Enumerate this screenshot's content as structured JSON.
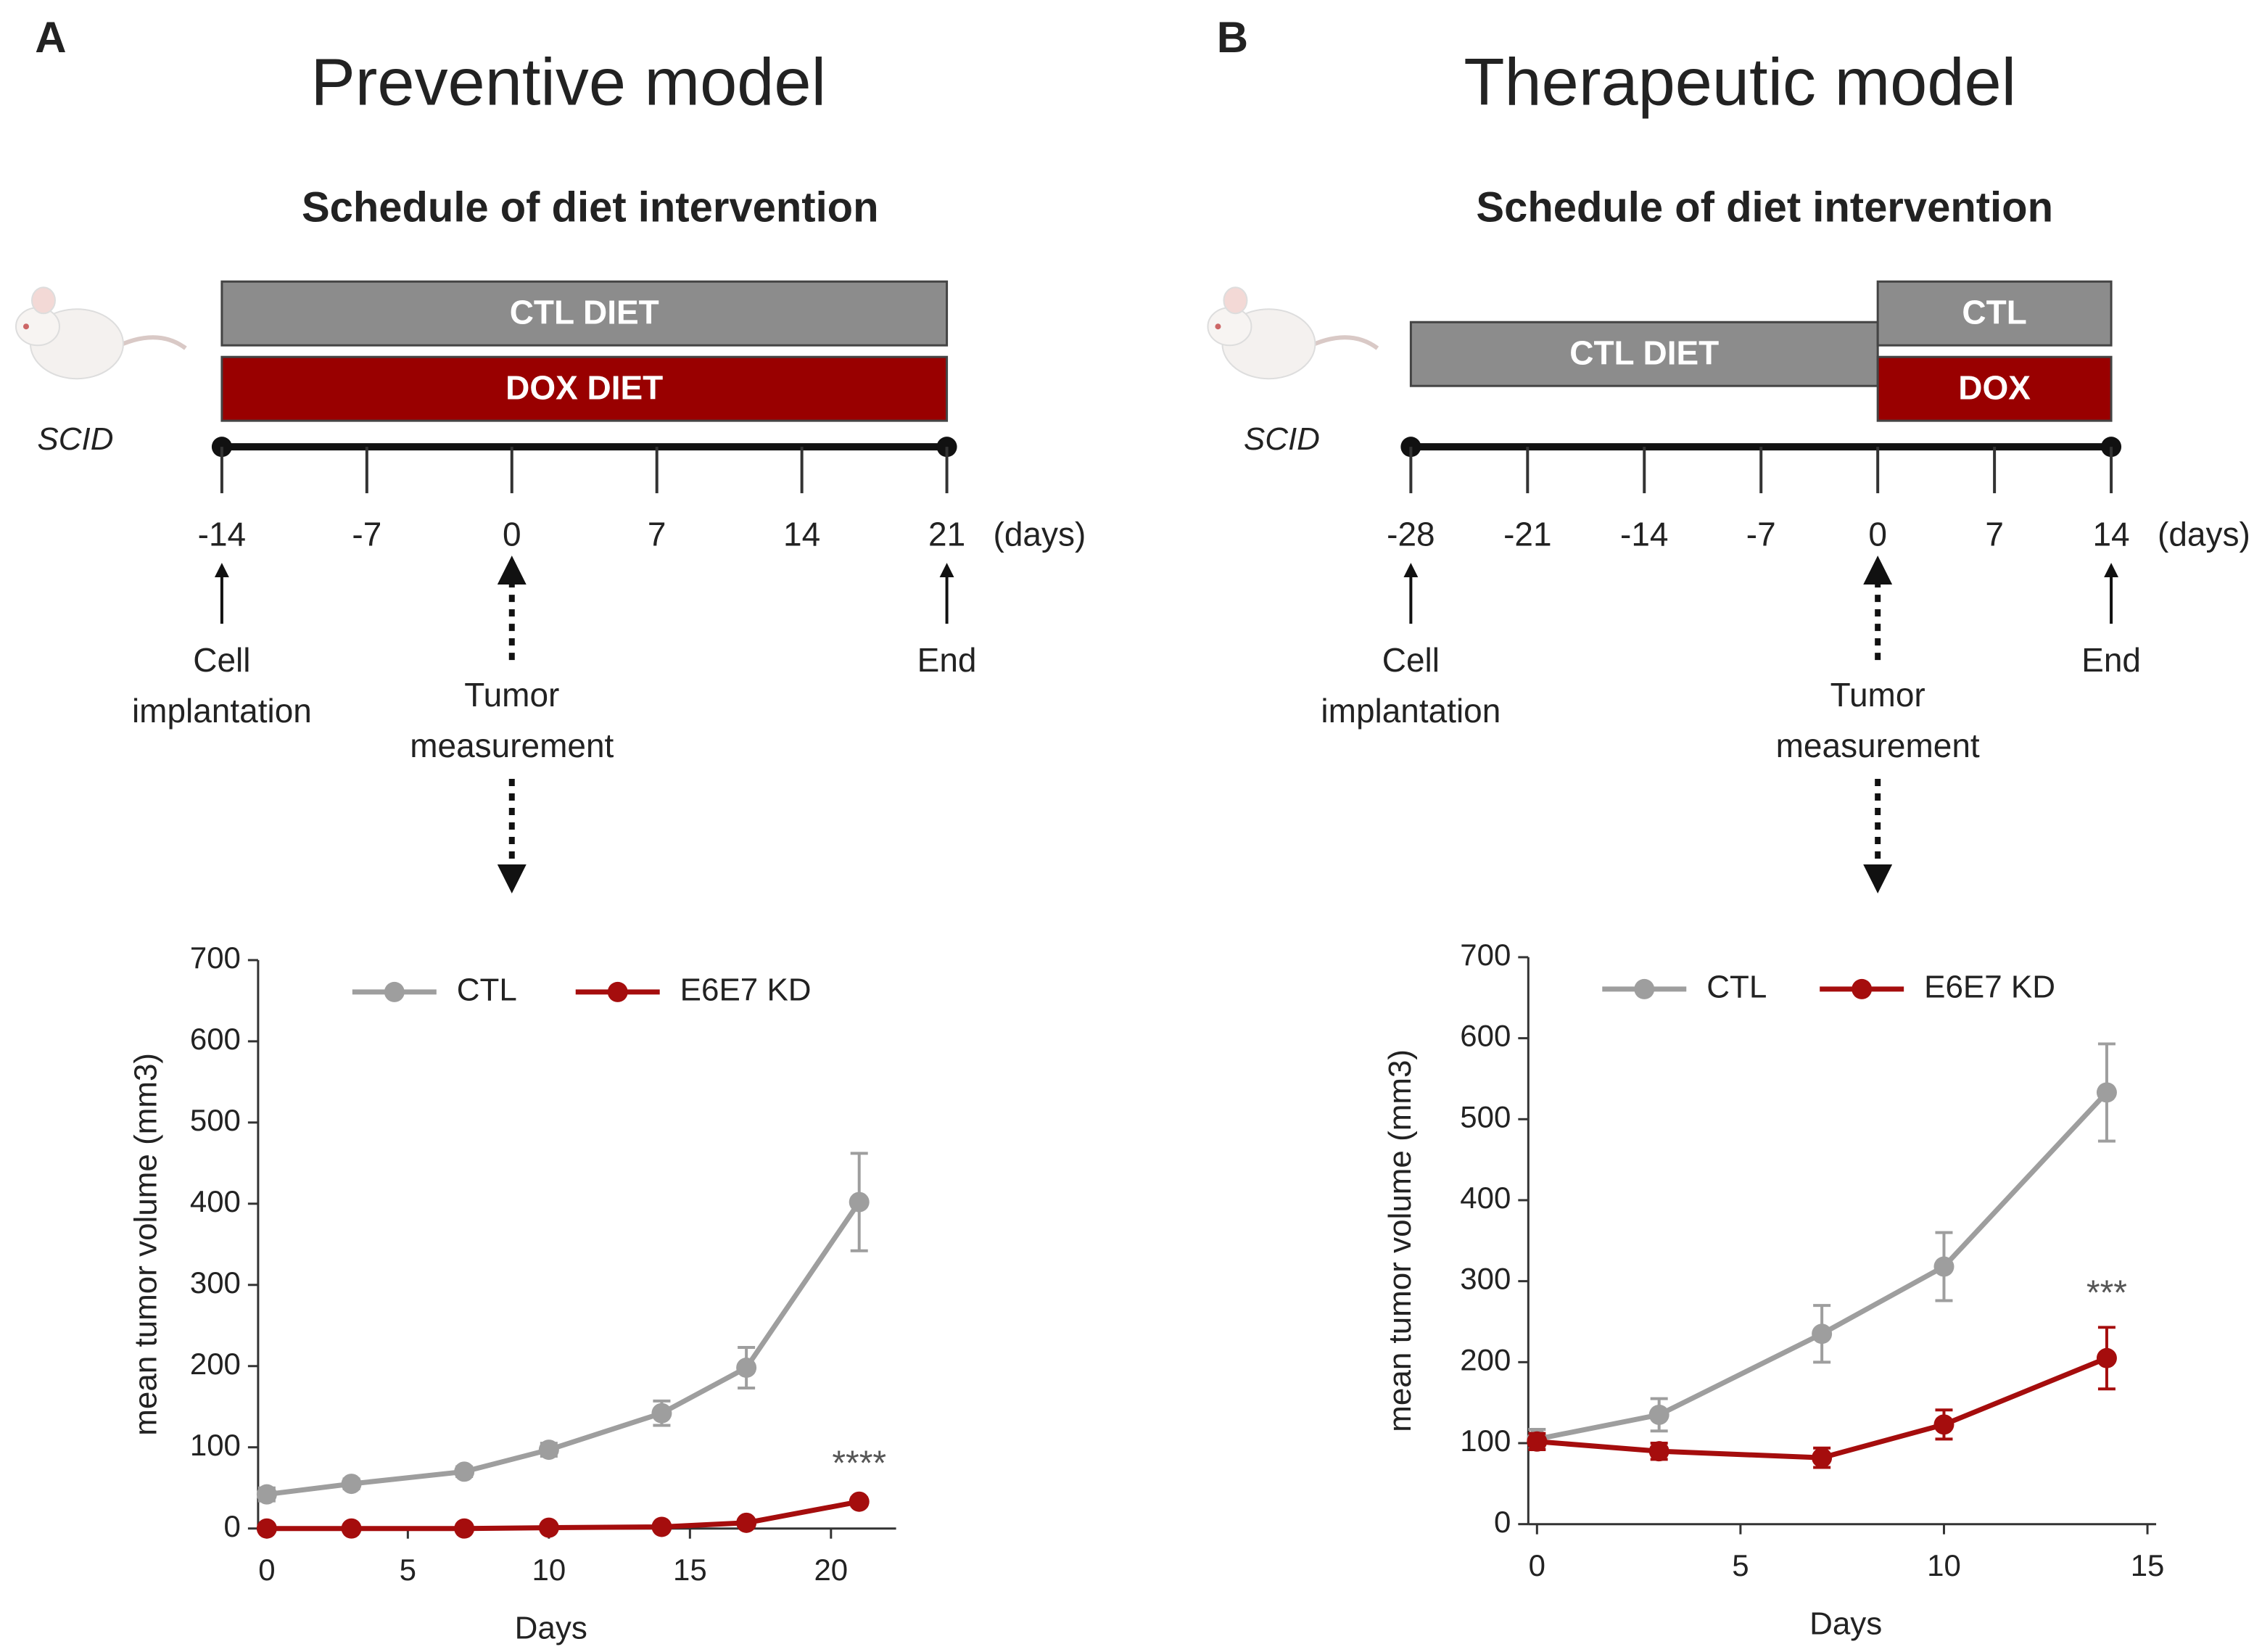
{
  "panels": [
    {
      "label": "A",
      "title": "Preventive model",
      "schedule_title": "Schedule of diet intervention",
      "strain": "SCID",
      "bars": [
        {
          "label": "CTL DIET",
          "color": "#8c8c8c",
          "from": -14,
          "to": 21
        },
        {
          "label": "DOX DIET",
          "color": "#990000",
          "from": -14,
          "to": 21
        }
      ],
      "timeline": {
        "ticks": [
          -14,
          -7,
          0,
          7,
          14,
          21
        ],
        "unit": "(days)"
      },
      "events": [
        {
          "at": -14,
          "lines": [
            "Cell",
            "implantation"
          ],
          "style": "solid"
        },
        {
          "at": 0,
          "lines": [
            "Tumor",
            "measurement"
          ],
          "style": "dotted"
        },
        {
          "at": 21,
          "lines": [
            "End"
          ],
          "style": "solid"
        }
      ]
    },
    {
      "label": "B",
      "title": "Therapeutic model",
      "schedule_title": "Schedule of diet intervention",
      "strain": "SCID",
      "bars": [
        {
          "label": "CTL DIET",
          "color": "#8c8c8c",
          "from": -28,
          "to": 0
        },
        {
          "label": "CTL",
          "color": "#8c8c8c",
          "from": 0,
          "to": 14
        },
        {
          "label": "DOX",
          "color": "#990000",
          "from": 0,
          "to": 14
        }
      ],
      "timeline": {
        "ticks": [
          -28,
          -21,
          -14,
          -7,
          0,
          7,
          14
        ],
        "unit": "(days)"
      },
      "events": [
        {
          "at": -28,
          "lines": [
            "Cell",
            "implantation"
          ],
          "style": "solid"
        },
        {
          "at": 0,
          "lines": [
            "Tumor",
            "measurement"
          ],
          "style": "dotted"
        },
        {
          "at": 14,
          "lines": [
            "End"
          ],
          "style": "solid"
        }
      ]
    }
  ],
  "chart_data": [
    {
      "type": "line",
      "x_label": "Days",
      "y_label": "mean tumor volume (mm3)",
      "x": [
        0,
        3,
        7,
        10,
        14,
        17,
        21
      ],
      "series": [
        {
          "name": "CTL",
          "color": "#9e9e9e",
          "values": [
            42,
            55,
            70,
            97,
            142,
            198,
            402
          ],
          "errors": [
            8,
            6,
            6,
            8,
            15,
            25,
            60
          ]
        },
        {
          "name": "E6E7 KD",
          "color": "#a50d0d",
          "values": [
            0,
            0,
            0,
            1,
            2,
            7,
            33
          ],
          "errors": [
            0,
            0,
            0,
            1,
            2,
            3,
            5
          ]
        }
      ],
      "xlim": [
        0,
        22
      ],
      "xticks": [
        0,
        5,
        10,
        15,
        20
      ],
      "ylim": [
        0,
        700
      ],
      "yticks": [
        0,
        100,
        200,
        300,
        400,
        500,
        600,
        700
      ],
      "legend": "top",
      "annotations": [
        {
          "text": "****",
          "x": 21
        }
      ]
    },
    {
      "type": "line",
      "x_label": "Days",
      "y_label": "mean tumor volume (mm3)",
      "x": [
        0,
        3,
        7,
        10,
        14
      ],
      "series": [
        {
          "name": "CTL",
          "color": "#9e9e9e",
          "values": [
            105,
            135,
            235,
            318,
            533
          ],
          "errors": [
            12,
            20,
            35,
            42,
            60
          ]
        },
        {
          "name": "E6E7 KD",
          "color": "#a50d0d",
          "values": [
            102,
            90,
            82,
            123,
            205
          ],
          "errors": [
            10,
            10,
            12,
            18,
            38
          ]
        }
      ],
      "xlim": [
        0,
        15
      ],
      "xticks": [
        0,
        5,
        10,
        15
      ],
      "ylim": [
        0,
        700
      ],
      "yticks": [
        0,
        100,
        200,
        300,
        400,
        500,
        600,
        700
      ],
      "legend": "top",
      "annotations": [
        {
          "text": "***",
          "x": 14
        }
      ]
    }
  ]
}
